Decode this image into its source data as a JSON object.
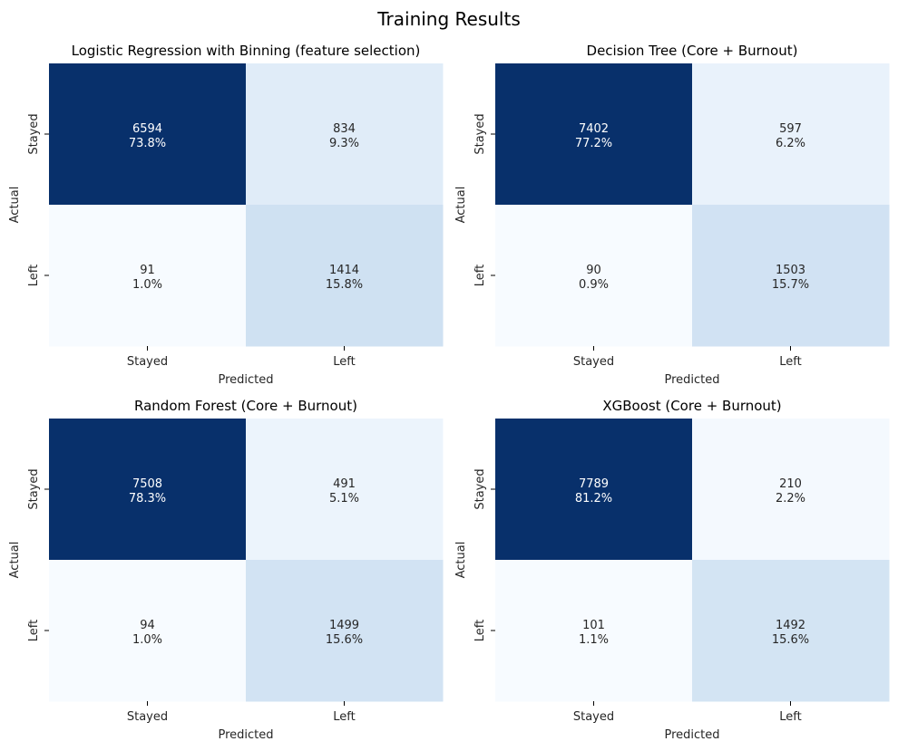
{
  "figure_title": "Training Results",
  "colors": {
    "cmap": "Blues",
    "dark_text": "#262626",
    "light_text": "#ffffff"
  },
  "chart_data": [
    {
      "type": "heatmap",
      "title": "Logistic Regression with Binning (feature selection)",
      "xlabel": "Predicted",
      "ylabel": "Actual",
      "x_categories": [
        "Stayed",
        "Left"
      ],
      "y_categories": [
        "Stayed",
        "Left"
      ],
      "values": [
        [
          6594,
          834
        ],
        [
          91,
          1414
        ]
      ],
      "percents": [
        [
          "73.8%",
          "9.3%"
        ],
        [
          "1.0%",
          "15.8%"
        ]
      ],
      "grid": false,
      "colorbar": false
    },
    {
      "type": "heatmap",
      "title": "Decision Tree (Core + Burnout)",
      "xlabel": "Predicted",
      "ylabel": "Actual",
      "x_categories": [
        "Stayed",
        "Left"
      ],
      "y_categories": [
        "Stayed",
        "Left"
      ],
      "values": [
        [
          7402,
          597
        ],
        [
          90,
          1503
        ]
      ],
      "percents": [
        [
          "77.2%",
          "6.2%"
        ],
        [
          "0.9%",
          "15.7%"
        ]
      ],
      "grid": false,
      "colorbar": false
    },
    {
      "type": "heatmap",
      "title": "Random Forest (Core + Burnout)",
      "xlabel": "Predicted",
      "ylabel": "Actual",
      "x_categories": [
        "Stayed",
        "Left"
      ],
      "y_categories": [
        "Stayed",
        "Left"
      ],
      "values": [
        [
          7508,
          491
        ],
        [
          94,
          1499
        ]
      ],
      "percents": [
        [
          "78.3%",
          "5.1%"
        ],
        [
          "1.0%",
          "15.6%"
        ]
      ],
      "grid": false,
      "colorbar": false
    },
    {
      "type": "heatmap",
      "title": "XGBoost (Core + Burnout)",
      "xlabel": "Predicted",
      "ylabel": "Actual",
      "x_categories": [
        "Stayed",
        "Left"
      ],
      "y_categories": [
        "Stayed",
        "Left"
      ],
      "values": [
        [
          7789,
          210
        ],
        [
          101,
          1492
        ]
      ],
      "percents": [
        [
          "81.2%",
          "2.2%"
        ],
        [
          "1.1%",
          "15.6%"
        ]
      ],
      "grid": false,
      "colorbar": false
    }
  ]
}
